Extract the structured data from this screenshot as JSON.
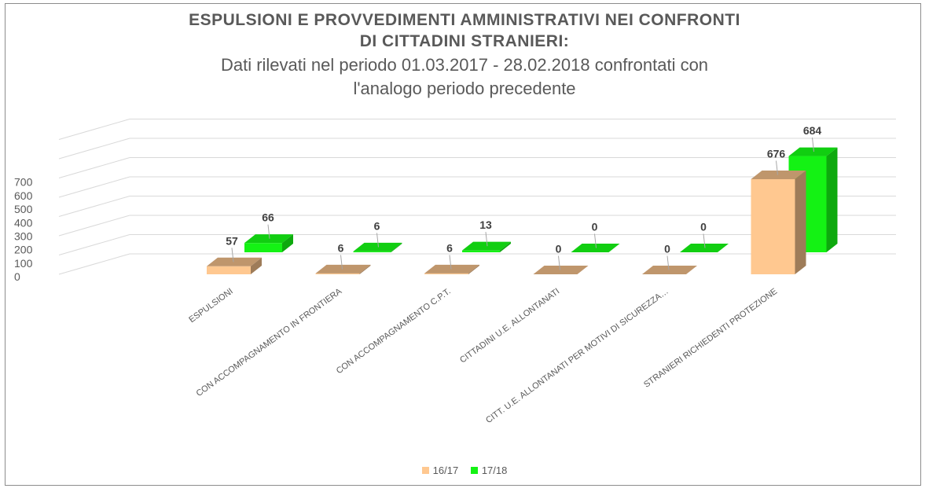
{
  "title": {
    "line1": "ESPULSIONI E PROVVEDIMENTI AMMINISTRATIVI NEI CONFRONTI",
    "line2": "DI CITTADINI STRANIERI:",
    "sub1": "Dati rilevati nel periodo 01.03.2017 - 28.02.2018 confrontati con",
    "sub2": "l'analogo periodo precedente"
  },
  "legend": [
    {
      "label": "16/17",
      "color": "#FFC890"
    },
    {
      "label": "17/18",
      "color": "#14F214"
    }
  ],
  "chart_data": {
    "type": "bar",
    "title": "ESPULSIONI E PROVVEDIMENTI AMMINISTRATIVI NEI CONFRONTI DI CITTADINI STRANIERI: Dati rilevati nel periodo 01.03.2017 - 28.02.2018 confrontati con l'analogo periodo precedente",
    "categories": [
      "ESPULSIONI",
      "CON ACCOMPAGNAMENTO IN FRONTIERA",
      "CON ACCOMPAGNAMENTO C.P.T.",
      "CITTADINI U.E. ALLONTANATI",
      "CITT. U.E. ALLONTANATI PER MOTIVI DI SICUREZZA…",
      "STRANIERI RICHIEDENTI PROTEZIONE"
    ],
    "series": [
      {
        "name": "16/17",
        "values": [
          57,
          6,
          6,
          0,
          0,
          676
        ],
        "color": "#FFC890"
      },
      {
        "name": "17/18",
        "values": [
          66,
          6,
          13,
          0,
          0,
          684
        ],
        "color": "#14F214"
      }
    ],
    "yticks": [
      0,
      100,
      200,
      300,
      400,
      500,
      600,
      700
    ],
    "ylim": [
      0,
      700
    ],
    "grid": true,
    "legend_position": "bottom",
    "three_d": true
  }
}
